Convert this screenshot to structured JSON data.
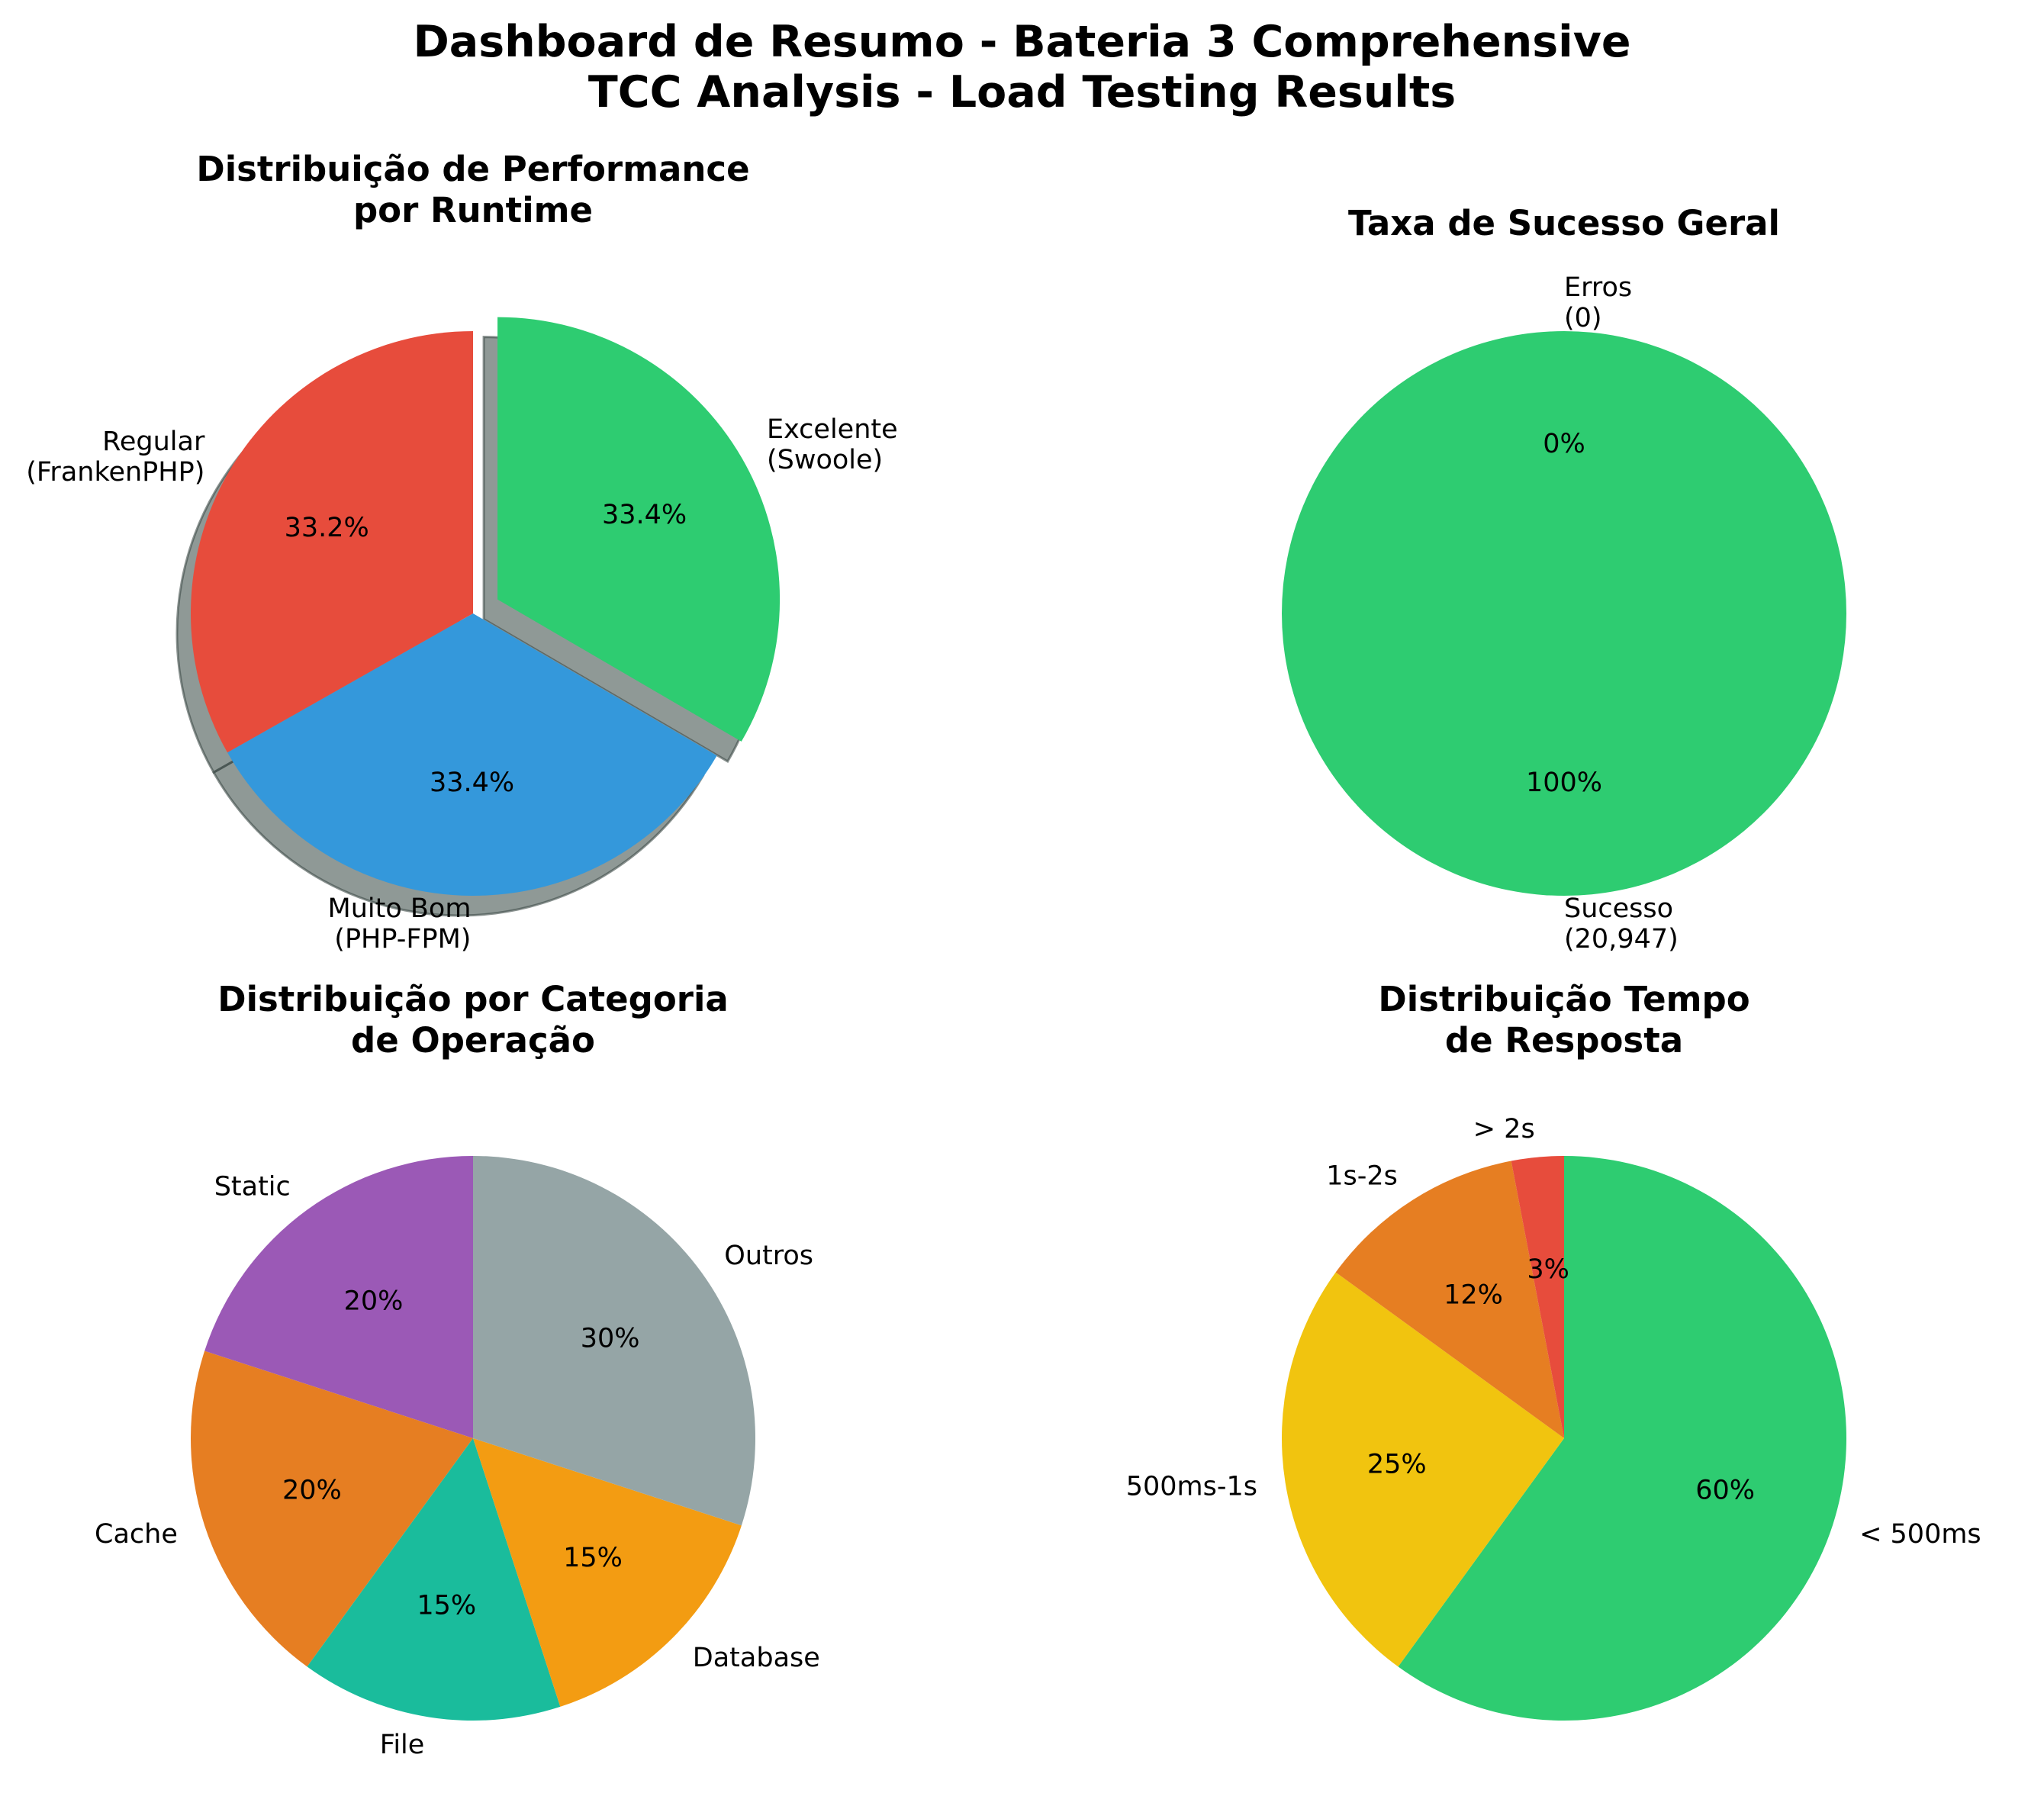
{
  "title": {
    "line1": "Dashboard de Resumo - Bateria 3 Comprehensive",
    "line2": "TCC Analysis - Load Testing Results"
  },
  "chart_data": [
    {
      "type": "pie",
      "title": [
        "Distribuição de Performance",
        "por Runtime"
      ],
      "labels": [
        [
          "Excelente",
          "(Swoole)"
        ],
        [
          "Muito Bom",
          "(PHP-FPM)"
        ],
        [
          "Regular",
          "(FrankenPHP)"
        ]
      ],
      "pct_labels": [
        "33.4%",
        "33.4%",
        "33.2%"
      ],
      "values": [
        33.4,
        33.4,
        33.2
      ],
      "colors": [
        "#2ecc71",
        "#3498db",
        "#e74c3c"
      ],
      "exploded": [
        "Excelente (Swoole)"
      ],
      "shadow": true
    },
    {
      "type": "pie",
      "title": [
        "Taxa de Sucesso Geral"
      ],
      "labels": [
        [
          "Sucesso",
          "(20,947)"
        ],
        [
          "Erros",
          "(0)"
        ]
      ],
      "pct_labels": [
        "100%",
        "0%"
      ],
      "values": [
        20947,
        0
      ],
      "colors": [
        "#2ecc71",
        "#e74c3c"
      ]
    },
    {
      "type": "pie",
      "title": [
        "Distribuição por Categoria",
        "de Operação"
      ],
      "labels": [
        [
          "Static"
        ],
        [
          "Cache"
        ],
        [
          "File"
        ],
        [
          "Database"
        ],
        [
          "Outros"
        ]
      ],
      "pct_labels": [
        "20%",
        "20%",
        "15%",
        "15%",
        "30%"
      ],
      "values": [
        20,
        20,
        15,
        15,
        30
      ],
      "colors": [
        "#9b59b6",
        "#e67e22",
        "#1abc9c",
        "#f39c12",
        "#95a5a6"
      ]
    },
    {
      "type": "pie",
      "title": [
        "Distribuição Tempo",
        "de Resposta"
      ],
      "labels": [
        [
          "< 500ms"
        ],
        [
          "500ms-1s"
        ],
        [
          "1s-2s"
        ],
        [
          "> 2s"
        ]
      ],
      "pct_labels": [
        "60%",
        "25%",
        "12%",
        "3%"
      ],
      "values": [
        60,
        25,
        12,
        3
      ],
      "colors": [
        "#2ecc71",
        "#f1c40f",
        "#e67e22",
        "#e74c3c"
      ]
    }
  ]
}
